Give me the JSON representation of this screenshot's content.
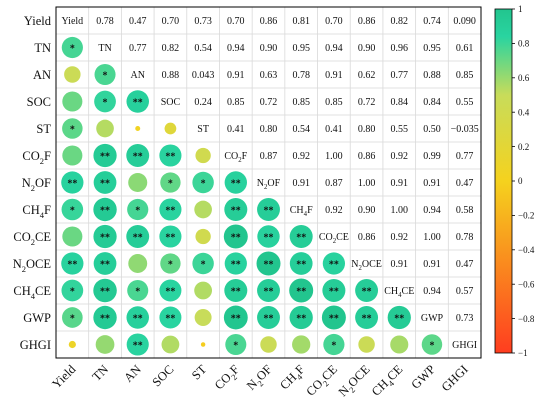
{
  "chart_data": {
    "type": "heatmap",
    "style": "correlation-matrix, circles in lower triangle, coefficients in upper triangle, variable names on diagonal",
    "variables": [
      "Yield",
      "TN",
      "AN",
      "SOC",
      "ST",
      "CO2F",
      "N2OF",
      "CH4F",
      "CO2CE",
      "N2OCE",
      "CH4CE",
      "GWP",
      "GHGI"
    ],
    "variable_labels": [
      {
        "base": "Yield",
        "sub": "",
        "tail": ""
      },
      {
        "base": "TN",
        "sub": "",
        "tail": ""
      },
      {
        "base": "AN",
        "sub": "",
        "tail": ""
      },
      {
        "base": "SOC",
        "sub": "",
        "tail": ""
      },
      {
        "base": "ST",
        "sub": "",
        "tail": ""
      },
      {
        "base": "CO",
        "sub": "2",
        "tail": "F"
      },
      {
        "base": "N",
        "sub": "2",
        "tail": "OF"
      },
      {
        "base": "CH",
        "sub": "4",
        "tail": "F"
      },
      {
        "base": "CO",
        "sub": "2",
        "tail": "CE"
      },
      {
        "base": "N",
        "sub": "2",
        "tail": "OCE"
      },
      {
        "base": "CH",
        "sub": "4",
        "tail": "CE"
      },
      {
        "base": "GWP",
        "sub": "",
        "tail": ""
      },
      {
        "base": "GHGI",
        "sub": "",
        "tail": ""
      }
    ],
    "upper_text": [
      [
        "",
        "0.78",
        "0.47",
        "0.70",
        "0.73",
        "0.70",
        "0.86",
        "0.81",
        "0.70",
        "0.86",
        "0.82",
        "0.74",
        "0.090"
      ],
      [
        "",
        "",
        "0.77",
        "0.82",
        "0.54",
        "0.94",
        "0.90",
        "0.95",
        "0.94",
        "0.90",
        "0.96",
        "0.95",
        "0.61"
      ],
      [
        "",
        "",
        "",
        "0.88",
        "0.043",
        "0.91",
        "0.63",
        "0.78",
        "0.91",
        "0.62",
        "0.77",
        "0.88",
        "0.85"
      ],
      [
        "",
        "",
        "",
        "",
        "0.24",
        "0.85",
        "0.72",
        "0.85",
        "0.85",
        "0.72",
        "0.84",
        "0.84",
        "0.55"
      ],
      [
        "",
        "",
        "",
        "",
        "",
        "0.41",
        "0.80",
        "0.54",
        "0.41",
        "0.80",
        "0.55",
        "0.50",
        "−0.035"
      ],
      [
        "",
        "",
        "",
        "",
        "",
        "",
        "0.87",
        "0.92",
        "1.00",
        "0.86",
        "0.92",
        "0.99",
        "0.77"
      ],
      [
        "",
        "",
        "",
        "",
        "",
        "",
        "",
        "0.91",
        "0.87",
        "1.00",
        "0.91",
        "0.91",
        "0.47"
      ],
      [
        "",
        "",
        "",
        "",
        "",
        "",
        "",
        "",
        "0.92",
        "0.90",
        "1.00",
        "0.94",
        "0.58"
      ],
      [
        "",
        "",
        "",
        "",
        "",
        "",
        "",
        "",
        "",
        "0.86",
        "0.92",
        "1.00",
        "0.78"
      ],
      [
        "",
        "",
        "",
        "",
        "",
        "",
        "",
        "",
        "",
        "",
        "0.91",
        "0.91",
        "0.47"
      ],
      [
        "",
        "",
        "",
        "",
        "",
        "",
        "",
        "",
        "",
        "",
        "",
        "0.94",
        "0.57"
      ],
      [
        "",
        "",
        "",
        "",
        "",
        "",
        "",
        "",
        "",
        "",
        "",
        "",
        "0.73"
      ],
      [
        "",
        "",
        "",
        "",
        "",
        "",
        "",
        "",
        "",
        "",
        "",
        "",
        ""
      ]
    ],
    "correlations": [
      [
        1.0,
        0.78,
        0.47,
        0.7,
        0.73,
        0.7,
        0.86,
        0.81,
        0.7,
        0.86,
        0.82,
        0.74,
        0.09
      ],
      [
        0.78,
        1.0,
        0.77,
        0.82,
        0.54,
        0.94,
        0.9,
        0.95,
        0.94,
        0.9,
        0.96,
        0.95,
        0.61
      ],
      [
        0.47,
        0.77,
        1.0,
        0.88,
        0.043,
        0.91,
        0.63,
        0.78,
        0.91,
        0.62,
        0.77,
        0.88,
        0.85
      ],
      [
        0.7,
        0.82,
        0.88,
        1.0,
        0.24,
        0.85,
        0.72,
        0.85,
        0.85,
        0.72,
        0.84,
        0.84,
        0.55
      ],
      [
        0.73,
        0.54,
        0.043,
        0.24,
        1.0,
        0.41,
        0.8,
        0.54,
        0.41,
        0.8,
        0.55,
        0.5,
        -0.035
      ],
      [
        0.7,
        0.94,
        0.91,
        0.85,
        0.41,
        1.0,
        0.87,
        0.92,
        1.0,
        0.86,
        0.92,
        0.99,
        0.77
      ],
      [
        0.86,
        0.9,
        0.63,
        0.72,
        0.8,
        0.87,
        1.0,
        0.91,
        0.87,
        1.0,
        0.91,
        0.91,
        0.47
      ],
      [
        0.81,
        0.95,
        0.78,
        0.85,
        0.54,
        0.92,
        0.91,
        1.0,
        0.92,
        0.9,
        1.0,
        0.94,
        0.58
      ],
      [
        0.7,
        0.94,
        0.91,
        0.85,
        0.41,
        1.0,
        0.87,
        0.92,
        1.0,
        0.86,
        0.92,
        1.0,
        0.78
      ],
      [
        0.86,
        0.9,
        0.62,
        0.72,
        0.8,
        0.86,
        1.0,
        0.9,
        0.86,
        1.0,
        0.91,
        0.91,
        0.47
      ],
      [
        0.82,
        0.96,
        0.77,
        0.84,
        0.55,
        0.92,
        0.91,
        1.0,
        0.92,
        0.91,
        1.0,
        0.94,
        0.57
      ],
      [
        0.74,
        0.95,
        0.88,
        0.84,
        0.5,
        0.99,
        0.91,
        0.94,
        1.0,
        0.91,
        0.94,
        1.0,
        0.73
      ],
      [
        0.09,
        0.61,
        0.85,
        0.55,
        -0.035,
        0.77,
        0.47,
        0.58,
        0.78,
        0.47,
        0.57,
        0.73,
        1.0
      ]
    ],
    "significance": [
      [
        "",
        "",
        "",
        "",
        "",
        "",
        "",
        "",
        "",
        "",
        "",
        "",
        ""
      ],
      [
        "*",
        "",
        "",
        "",
        "",
        "",
        "",
        "",
        "",
        "",
        "",
        "",
        ""
      ],
      [
        "",
        "*",
        "",
        "",
        "",
        "",
        "",
        "",
        "",
        "",
        "",
        "",
        ""
      ],
      [
        "",
        "*",
        "**",
        "",
        "",
        "",
        "",
        "",
        "",
        "",
        "",
        "",
        ""
      ],
      [
        "*",
        "",
        "",
        "",
        "",
        "",
        "",
        "",
        "",
        "",
        "",
        "",
        ""
      ],
      [
        "",
        "**",
        "**",
        "**",
        "",
        "",
        "",
        "",
        "",
        "",
        "",
        "",
        ""
      ],
      [
        "**",
        "**",
        "",
        "*",
        "*",
        "**",
        "",
        "",
        "",
        "",
        "",
        "",
        ""
      ],
      [
        "*",
        "**",
        "*",
        "**",
        "",
        "**",
        "**",
        "",
        "",
        "",
        "",
        "",
        ""
      ],
      [
        "",
        "**",
        "**",
        "**",
        "",
        "**",
        "**",
        "**",
        "",
        "",
        "",
        "",
        ""
      ],
      [
        "**",
        "**",
        "",
        "*",
        "*",
        "**",
        "**",
        "**",
        "**",
        "",
        "",
        "",
        ""
      ],
      [
        "*",
        "**",
        "*",
        "**",
        "",
        "**",
        "**",
        "**",
        "**",
        "**",
        "",
        "",
        ""
      ],
      [
        "*",
        "**",
        "**",
        "**",
        "",
        "**",
        "**",
        "**",
        "**",
        "**",
        "**",
        "",
        ""
      ],
      [
        "",
        "",
        "**",
        "",
        "",
        "*",
        "",
        "",
        "*",
        "",
        "",
        "*",
        ""
      ]
    ],
    "colorbar": {
      "range": [
        -1,
        1
      ],
      "ticks": [
        "1",
        "0.8",
        "0.6",
        "0.4",
        "0.2",
        "0",
        "−0.2",
        "−0.4",
        "−0.6",
        "−0.8",
        "−1"
      ],
      "colors": [
        "#ff3d1f",
        "#f5d21e",
        "#c8dc5a",
        "#29d4a0",
        "#22c58e"
      ]
    }
  }
}
